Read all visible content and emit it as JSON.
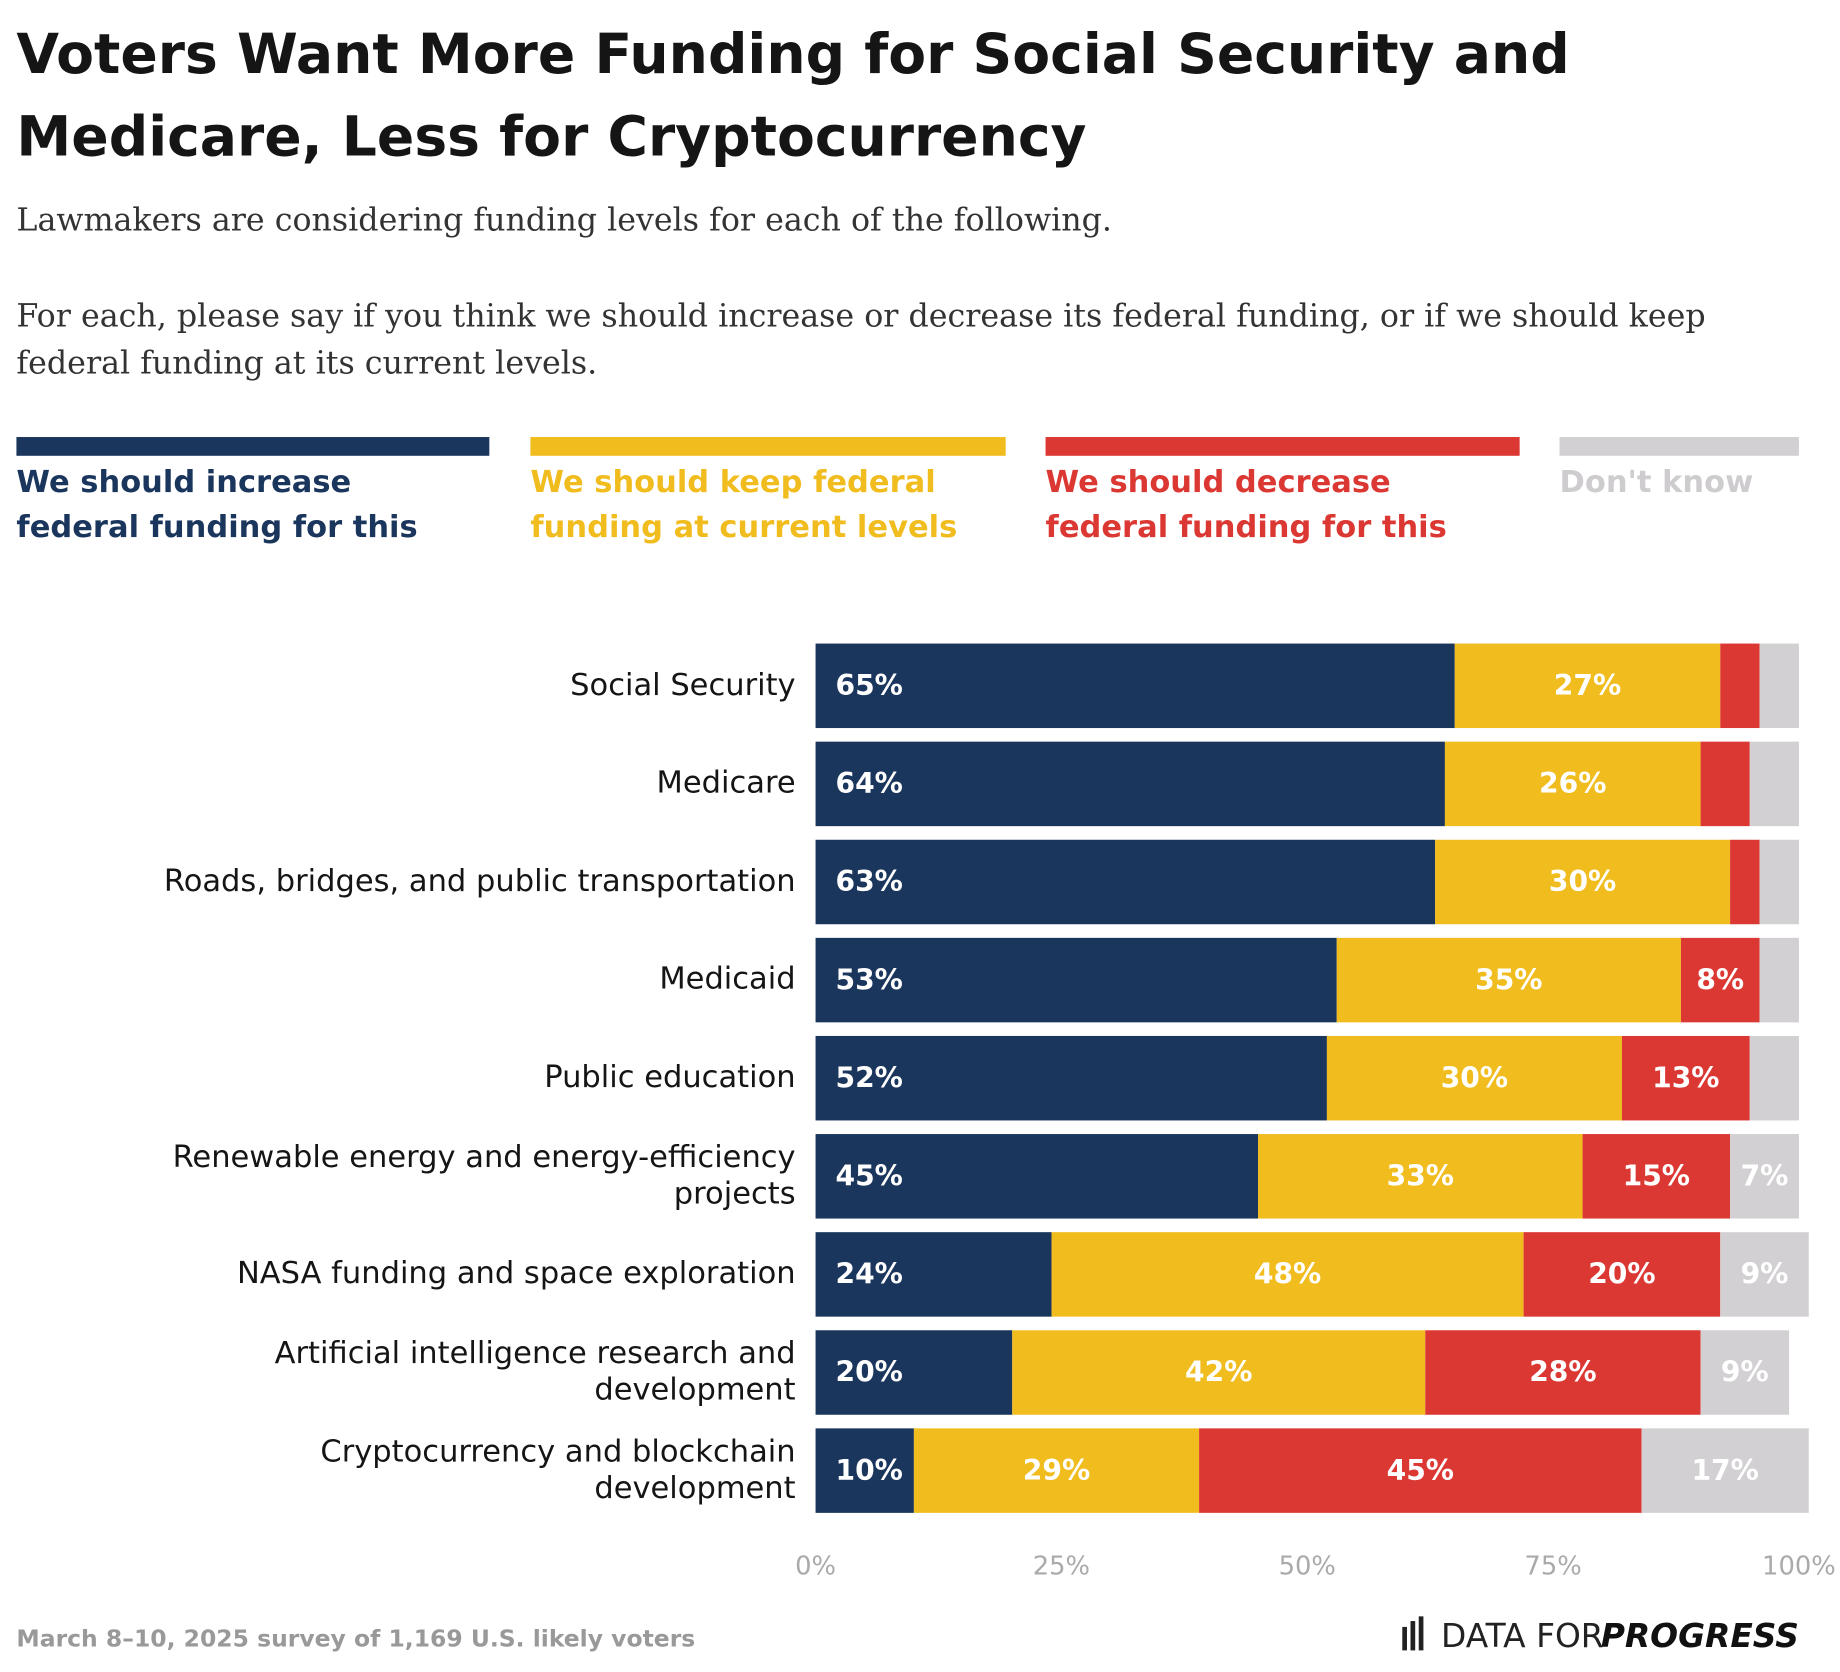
{
  "chart_data": {
    "type": "stacked-bar",
    "title": "Voters Want More Funding for Social Security and Medicare, Less for Cryptocurrency",
    "subtitle": [
      "Lawmakers are considering funding levels for each of the following.",
      "For each, please say if you think we should increase or decrease its federal funding, or if we should keep federal funding at its current levels."
    ],
    "categories": [
      "Social Security",
      "Medicare",
      "Roads, bridges, and public transportation",
      "Medicaid",
      "Public education",
      "Renewable energy and energy-efficiency projects",
      "NASA funding and space exploration",
      "Artificial intelligence research and development",
      "Cryptocurrency and blockchain development"
    ],
    "series": [
      {
        "name": "We should increase federal funding for this",
        "color": "#1b365d",
        "values": [
          65,
          64,
          63,
          53,
          52,
          45,
          24,
          20,
          10
        ],
        "value_labels": [
          "65%",
          "64%",
          "63%",
          "53%",
          "52%",
          "45%",
          "24%",
          "20%",
          "10%"
        ]
      },
      {
        "name": "We should keep federal funding at current levels",
        "color": "#f0bc1e",
        "values": [
          27,
          26,
          30,
          35,
          30,
          33,
          48,
          42,
          29
        ],
        "value_labels": [
          "27%",
          "26%",
          "30%",
          "35%",
          "30%",
          "33%",
          "48%",
          "42%",
          "29%"
        ]
      },
      {
        "name": "We should decrease federal funding for this",
        "color": "#dc3833",
        "values": [
          4,
          5,
          3,
          8,
          13,
          15,
          20,
          28,
          45
        ],
        "value_labels": [
          null,
          null,
          null,
          "8%",
          "13%",
          "15%",
          "20%",
          "28%",
          "45%"
        ]
      },
      {
        "name": "Don't know",
        "color": "#d3d0d3",
        "values": [
          4,
          5,
          4,
          4,
          5,
          7,
          9,
          9,
          17
        ],
        "value_labels": [
          null,
          null,
          null,
          null,
          null,
          "7%",
          "9%",
          "9%",
          "17%"
        ]
      }
    ],
    "xlim": [
      0,
      100
    ],
    "xticks": [
      {
        "value": 0,
        "label": "0%"
      },
      {
        "value": 25,
        "label": "25%"
      },
      {
        "value": 50,
        "label": "50%"
      },
      {
        "value": 75,
        "label": "75%"
      },
      {
        "value": 100,
        "label": "100%"
      }
    ],
    "source": "March 8–10, 2025 survey of 1,169 U.S. likely voters",
    "logo": [
      "DATA FOR",
      "PROGRESS"
    ]
  }
}
